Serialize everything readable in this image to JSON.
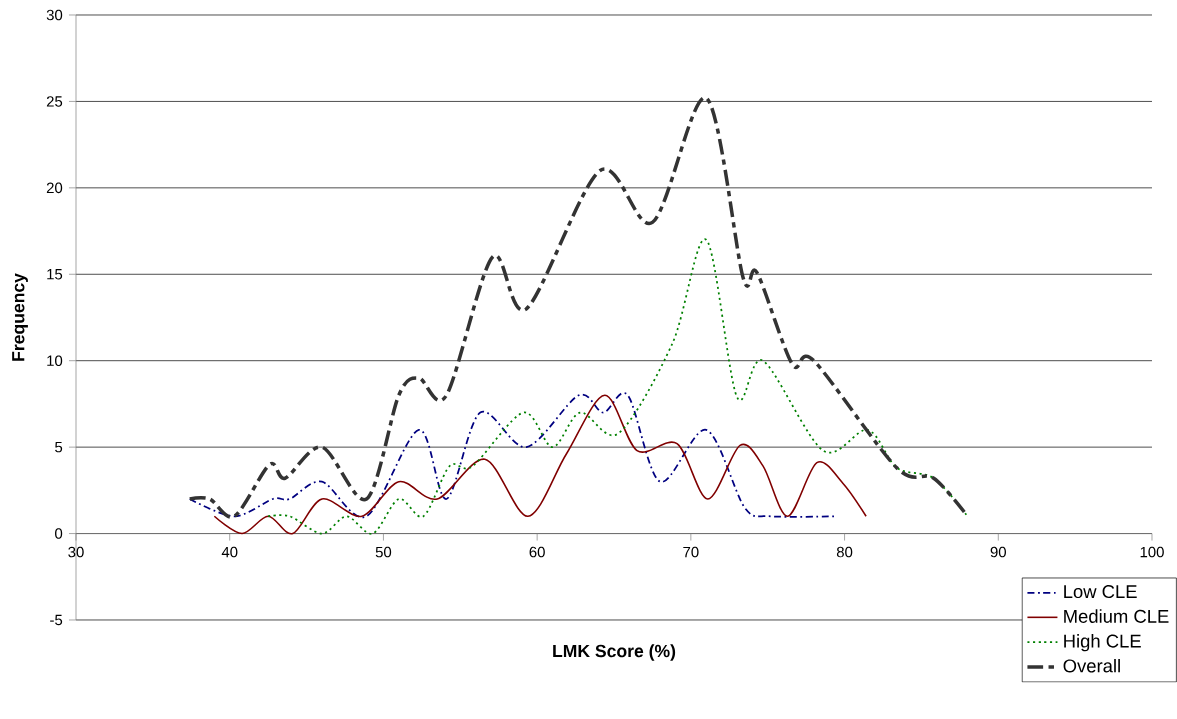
{
  "chart_data": {
    "type": "line",
    "xlabel": "LMK Score (%)",
    "ylabel": "Frequency",
    "xlim": [
      30,
      100
    ],
    "xticks": [
      30,
      40,
      50,
      60,
      70,
      80,
      90,
      100
    ],
    "ylim": [
      -5,
      30
    ],
    "yticks": [
      -5,
      0,
      5,
      10,
      15,
      20,
      25,
      30
    ],
    "grid": "y",
    "legend": "bottom right",
    "series": [
      {
        "name": "Low CLE",
        "color": "#000080",
        "line_style": "dashdot",
        "x": [
          37.4,
          40.3,
          42.8,
          43.9,
          46.0,
          48.9,
          52.3,
          54.1,
          56.3,
          59.3,
          62.7,
          64.3,
          65.9,
          68.0,
          71.0,
          73.5,
          75.2,
          79.4
        ],
        "values": [
          2,
          1,
          2,
          2,
          3,
          1,
          6,
          2,
          7,
          5,
          8,
          7,
          8,
          3,
          6,
          1.5,
          1,
          1
        ]
      },
      {
        "name": "Medium CLE",
        "color": "#800000",
        "line_style": "solid",
        "x": [
          39.0,
          40.8,
          42.5,
          44.1,
          46.0,
          48.6,
          51.0,
          53.5,
          56.6,
          59.4,
          61.9,
          64.4,
          66.5,
          69.1,
          71.1,
          73.2,
          74.7,
          76.3,
          78.2,
          79.9,
          81.4
        ],
        "values": [
          1,
          0,
          1,
          0,
          2,
          1,
          3,
          2,
          4.3,
          1,
          4.6,
          8,
          4.8,
          5.2,
          2,
          5.1,
          3.9,
          1,
          4.1,
          2.9,
          1
        ]
      },
      {
        "name": "High CLE",
        "color": "#008000",
        "line_style": "dotted",
        "x": [
          42.5,
          43.9,
          46.0,
          47.6,
          49.3,
          51.0,
          52.6,
          54.3,
          55.8,
          59.1,
          61.0,
          62.8,
          65.3,
          68.8,
          71.0,
          73.0,
          74.7,
          78.6,
          81.5,
          83.4,
          85.8,
          88.0
        ],
        "values": [
          1,
          1,
          0,
          1,
          0,
          2,
          1,
          3.9,
          3.9,
          7,
          5,
          7,
          5.8,
          11,
          17,
          7.9,
          10,
          4.8,
          6,
          3.8,
          3.2,
          1
        ]
      },
      {
        "name": "Overall",
        "color": "#333333",
        "line_style": "dashed",
        "x": [
          37.4,
          38.7,
          40.3,
          42.6,
          43.6,
          46.0,
          48.9,
          51.0,
          52.3,
          54.1,
          57.1,
          59.3,
          64.1,
          67.5,
          71.0,
          73.4,
          74.3,
          76.6,
          78.0,
          83.4,
          85.8,
          88.0
        ],
        "values": [
          2,
          2,
          1,
          4,
          3.2,
          5,
          2,
          8,
          9,
          8,
          16,
          13,
          21,
          18,
          25.2,
          14.8,
          15.1,
          9.8,
          10,
          3.8,
          3.2,
          1
        ]
      }
    ]
  }
}
